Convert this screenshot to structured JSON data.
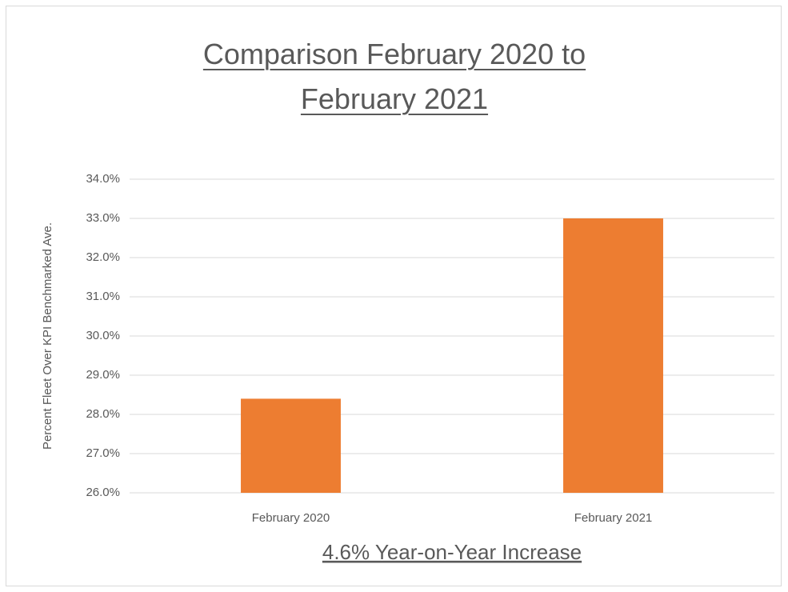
{
  "chart_data": {
    "type": "bar",
    "title": "Comparison February 2020 to February 2021",
    "categories": [
      "February 2020",
      "February 2021"
    ],
    "values": [
      28.4,
      33.0
    ],
    "color": "#ed7d31",
    "ylabel": "Percent Fleet Over KPI Benchmarked Ave.",
    "xlabel": "4.6% Year-on-Year Increase",
    "ylim": [
      26,
      34
    ],
    "yticks": [
      {
        "value": 26,
        "label": "26.0%"
      },
      {
        "value": 27,
        "label": "27.0%"
      },
      {
        "value": 28,
        "label": "28.0%"
      },
      {
        "value": 29,
        "label": "29.0%"
      },
      {
        "value": 30,
        "label": "30.0%"
      },
      {
        "value": 31,
        "label": "31.0%"
      },
      {
        "value": 32,
        "label": "32.0%"
      },
      {
        "value": 33,
        "label": "33.0%"
      },
      {
        "value": 34,
        "label": "34.0%"
      }
    ],
    "grid": true
  }
}
